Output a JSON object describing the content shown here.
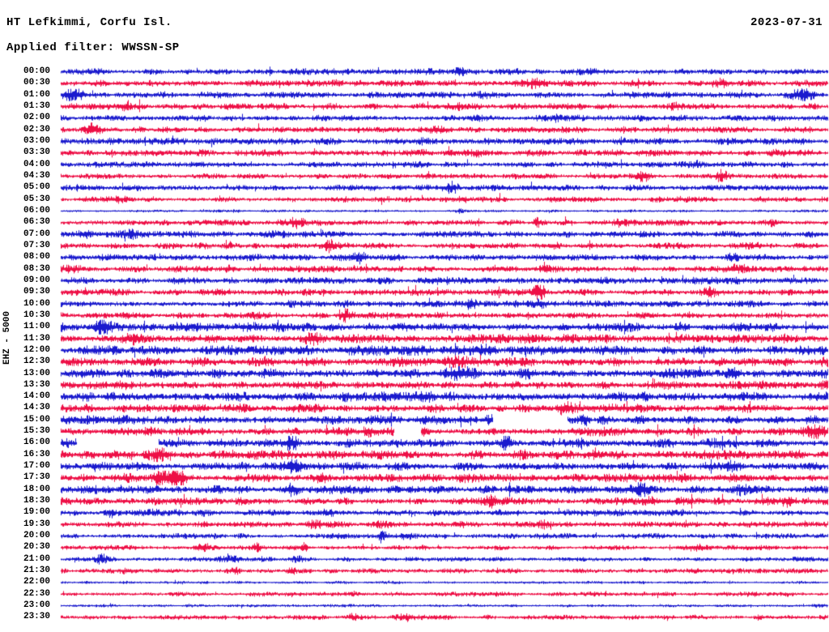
{
  "header": {
    "title": "HT Lefkimmi, Corfu Isl.",
    "filter": "Applied filter: WWSSN-SP",
    "date": "2023-07-31"
  },
  "axis": {
    "left_label": "EHZ - 5000"
  },
  "colors": {
    "background": "#ffffff",
    "text": "#000000",
    "trace_blue": "#1a1ace",
    "trace_red": "#ee0f46"
  },
  "chart_data": {
    "type": "line",
    "subtype": "seismic-helicorder-day-plot",
    "title": "HT Lefkimmi, Corfu Isl.",
    "date": "2023-07-31",
    "filter": "WWSSN-SP",
    "left_axis_label": "EHZ - 5000",
    "minutes_per_row": 30,
    "rows_count": 48,
    "time_range": [
      "00:00",
      "23:30"
    ],
    "color_rule": "rows starting on the hour are blue, half-hour rows are red",
    "row_field_legend": {
      "t": "row start time (UTC label shown at left)",
      "c": "trace color key",
      "a": "relative background noise amplitude of the row",
      "b": "noise bursts/events: [position 0-1 across row, amplitude multiplier, width fraction]",
      "g": "data gaps (blank trace): [start fraction, end fraction]"
    },
    "rows": [
      {
        "t": "00:00",
        "c": "blue",
        "a": 0.95,
        "b": [
          [
            0.52,
            2.6,
            0.006
          ]
        ],
        "g": []
      },
      {
        "t": "00:30",
        "c": "red",
        "a": 1.0,
        "b": [
          [
            0.36,
            1.9,
            0.006
          ],
          [
            0.62,
            1.8,
            0.006
          ],
          [
            0.86,
            1.6,
            0.008
          ]
        ],
        "g": []
      },
      {
        "t": "01:00",
        "c": "blue",
        "a": 1.0,
        "b": [
          [
            0.015,
            2.2,
            0.012
          ],
          [
            0.55,
            1.5,
            0.008
          ],
          [
            0.965,
            2.2,
            0.01
          ]
        ],
        "g": []
      },
      {
        "t": "01:30",
        "c": "red",
        "a": 1.0,
        "b": [
          [
            0.085,
            1.9,
            0.006
          ],
          [
            0.52,
            1.6,
            0.006
          ],
          [
            0.8,
            1.8,
            0.006
          ]
        ],
        "g": []
      },
      {
        "t": "02:00",
        "c": "blue",
        "a": 0.95,
        "b": [
          [
            0.645,
            1.9,
            0.006
          ]
        ],
        "g": []
      },
      {
        "t": "02:30",
        "c": "red",
        "a": 0.95,
        "b": [
          [
            0.042,
            2.6,
            0.007
          ],
          [
            0.5,
            1.4,
            0.01
          ]
        ],
        "g": []
      },
      {
        "t": "03:00",
        "c": "blue",
        "a": 1.0,
        "b": [
          [
            0.47,
            1.4,
            0.012
          ]
        ],
        "g": []
      },
      {
        "t": "03:30",
        "c": "red",
        "a": 1.05,
        "b": [
          [
            0.55,
            1.5,
            0.006
          ],
          [
            0.93,
            1.6,
            0.005
          ]
        ],
        "g": []
      },
      {
        "t": "04:00",
        "c": "blue",
        "a": 0.9,
        "b": [
          [
            0.18,
            2.1,
            0.007
          ],
          [
            0.473,
            1.8,
            0.005
          ],
          [
            0.83,
            1.5,
            0.006
          ]
        ],
        "g": []
      },
      {
        "t": "04:30",
        "c": "red",
        "a": 0.85,
        "b": [
          [
            0.76,
            2.2,
            0.006
          ],
          [
            0.862,
            2.4,
            0.005
          ]
        ],
        "g": []
      },
      {
        "t": "05:00",
        "c": "blue",
        "a": 0.9,
        "b": [
          [
            0.512,
            2.4,
            0.007
          ]
        ],
        "g": []
      },
      {
        "t": "05:30",
        "c": "red",
        "a": 0.85,
        "b": [
          [
            0.072,
            1.6,
            0.008
          ],
          [
            0.42,
            1.4,
            0.008
          ]
        ],
        "g": []
      },
      {
        "t": "06:00",
        "c": "blue",
        "a": 0.4,
        "b": [
          [
            0.23,
            1.6,
            0.004
          ],
          [
            0.52,
            2.0,
            0.004
          ]
        ],
        "g": []
      },
      {
        "t": "06:30",
        "c": "red",
        "a": 0.9,
        "b": [
          [
            0.308,
            2.8,
            0.006
          ],
          [
            0.62,
            1.9,
            0.005
          ],
          [
            0.73,
            1.8,
            0.005
          ],
          [
            0.925,
            1.9,
            0.005
          ]
        ],
        "g": []
      },
      {
        "t": "07:00",
        "c": "blue",
        "a": 1.0,
        "b": [
          [
            0.03,
            1.7,
            0.008
          ],
          [
            0.09,
            1.7,
            0.006
          ],
          [
            0.29,
            1.7,
            0.01
          ],
          [
            0.51,
            1.8,
            0.004
          ]
        ],
        "g": []
      },
      {
        "t": "07:30",
        "c": "red",
        "a": 0.95,
        "b": [
          [
            0.35,
            2.2,
            0.006
          ],
          [
            0.645,
            2.5,
            0.006
          ]
        ],
        "g": []
      },
      {
        "t": "08:00",
        "c": "blue",
        "a": 1.0,
        "b": [
          [
            0.24,
            1.6,
            0.006
          ],
          [
            0.392,
            2.2,
            0.006
          ],
          [
            0.87,
            1.5,
            0.008
          ]
        ],
        "g": []
      },
      {
        "t": "08:30",
        "c": "red",
        "a": 1.0,
        "b": [
          [
            0.02,
            1.8,
            0.01
          ],
          [
            0.22,
            1.7,
            0.006
          ],
          [
            0.63,
            1.7,
            0.006
          ],
          [
            0.88,
            1.5,
            0.01
          ]
        ],
        "g": []
      },
      {
        "t": "09:00",
        "c": "blue",
        "a": 1.05,
        "b": [
          [
            0.49,
            1.5,
            0.008
          ],
          [
            0.85,
            1.5,
            0.01
          ]
        ],
        "g": []
      },
      {
        "t": "09:30",
        "c": "red",
        "a": 1.0,
        "b": [
          [
            0.21,
            1.5,
            0.008
          ],
          [
            0.623,
            3.0,
            0.005
          ],
          [
            0.845,
            1.9,
            0.006
          ]
        ],
        "g": []
      },
      {
        "t": "10:00",
        "c": "blue",
        "a": 1.0,
        "b": [
          [
            0.3,
            1.6,
            0.006
          ],
          [
            0.37,
            1.8,
            0.008
          ],
          [
            0.535,
            2.8,
            0.005
          ],
          [
            0.625,
            2.0,
            0.006
          ]
        ],
        "g": []
      },
      {
        "t": "10:30",
        "c": "red",
        "a": 0.95,
        "b": [
          [
            0.25,
            2.0,
            0.007
          ],
          [
            0.37,
            2.2,
            0.007
          ]
        ],
        "g": []
      },
      {
        "t": "11:00",
        "c": "blue",
        "a": 1.35,
        "b": [
          [
            0.053,
            2.0,
            0.008
          ]
        ],
        "g": []
      },
      {
        "t": "11:30",
        "c": "red",
        "a": 1.35,
        "b": [
          [
            0.09,
            1.7,
            0.007
          ],
          [
            0.33,
            1.6,
            0.006
          ]
        ],
        "g": []
      },
      {
        "t": "12:00",
        "c": "blue",
        "a": 1.45,
        "b": [
          [
            0.55,
            1.3,
            0.01
          ]
        ],
        "g": []
      },
      {
        "t": "12:30",
        "c": "red",
        "a": 1.4,
        "b": [
          [
            0.52,
            1.4,
            0.01
          ],
          [
            0.91,
            1.4,
            0.006
          ]
        ],
        "g": []
      },
      {
        "t": "13:00",
        "c": "blue",
        "a": 1.4,
        "b": [
          [
            0.52,
            1.6,
            0.014
          ],
          [
            0.605,
            1.6,
            0.01
          ],
          [
            0.875,
            1.6,
            0.008
          ]
        ],
        "g": []
      },
      {
        "t": "13:30",
        "c": "red",
        "a": 1.3,
        "b": [
          [
            0.235,
            1.5,
            0.006
          ],
          [
            0.47,
            1.5,
            0.006
          ]
        ],
        "g": []
      },
      {
        "t": "14:00",
        "c": "blue",
        "a": 1.4,
        "b": [
          [
            0.475,
            1.8,
            0.008
          ]
        ],
        "g": []
      },
      {
        "t": "14:30",
        "c": "red",
        "a": 1.3,
        "b": [
          [
            0.655,
            1.7,
            0.008
          ]
        ],
        "g": []
      },
      {
        "t": "15:00",
        "c": "blue",
        "a": 1.3,
        "b": [
          [
            0.56,
            2.0,
            0.004
          ],
          [
            0.685,
            2.2,
            0.004
          ]
        ],
        "g": [
          [
            0.563,
            0.66
          ]
        ]
      },
      {
        "t": "15:30",
        "c": "red",
        "a": 1.3,
        "b": [
          [
            0.4,
            1.7,
            0.006
          ],
          [
            0.47,
            1.8,
            0.006
          ],
          [
            0.985,
            2.0,
            0.008
          ]
        ],
        "g": [
          [
            0.435,
            0.469
          ]
        ]
      },
      {
        "t": "16:00",
        "c": "blue",
        "a": 1.25,
        "b": [
          [
            0.005,
            1.9,
            0.008
          ],
          [
            0.3,
            2.1,
            0.006
          ],
          [
            0.58,
            2.5,
            0.005
          ],
          [
            0.86,
            1.7,
            0.006
          ]
        ],
        "g": [
          [
            0.021,
            0.127
          ]
        ]
      },
      {
        "t": "16:30",
        "c": "red",
        "a": 1.35,
        "b": [
          [
            0.135,
            2.0,
            0.01
          ],
          [
            0.6,
            1.8,
            0.008
          ],
          [
            0.95,
            1.6,
            0.008
          ]
        ],
        "g": []
      },
      {
        "t": "17:00",
        "c": "blue",
        "a": 1.3,
        "b": [
          [
            0.3,
            2.3,
            0.008
          ],
          [
            0.87,
            1.8,
            0.01
          ]
        ],
        "g": []
      },
      {
        "t": "17:30",
        "c": "red",
        "a": 1.3,
        "b": [
          [
            0.127,
            3.2,
            0.006
          ],
          [
            0.152,
            3.4,
            0.008
          ],
          [
            0.34,
            1.6,
            0.006
          ]
        ],
        "g": []
      },
      {
        "t": "18:00",
        "c": "blue",
        "a": 1.25,
        "b": [
          [
            0.3,
            1.9,
            0.006
          ],
          [
            0.435,
            2.1,
            0.006
          ],
          [
            0.75,
            2.8,
            0.009
          ],
          [
            0.885,
            2.5,
            0.007
          ]
        ],
        "g": []
      },
      {
        "t": "18:30",
        "c": "red",
        "a": 1.15,
        "b": [
          [
            0.47,
            1.6,
            0.006
          ],
          [
            0.56,
            1.6,
            0.006
          ],
          [
            0.77,
            1.5,
            0.008
          ],
          [
            0.95,
            1.7,
            0.006
          ]
        ],
        "g": []
      },
      {
        "t": "19:00",
        "c": "blue",
        "a": 1.0,
        "b": [
          [
            0.065,
            1.8,
            0.005
          ],
          [
            0.135,
            1.8,
            0.008
          ],
          [
            0.35,
            2.4,
            0.007
          ]
        ],
        "g": []
      },
      {
        "t": "19:30",
        "c": "red",
        "a": 0.9,
        "b": [
          [
            0.33,
            2.1,
            0.008
          ],
          [
            0.42,
            1.7,
            0.006
          ],
          [
            0.52,
            1.7,
            0.005
          ],
          [
            0.63,
            1.8,
            0.005
          ]
        ],
        "g": []
      },
      {
        "t": "20:00",
        "c": "blue",
        "a": 0.8,
        "b": [
          [
            0.36,
            1.9,
            0.008
          ],
          [
            0.42,
            2.4,
            0.005
          ],
          [
            0.45,
            1.9,
            0.004
          ],
          [
            0.63,
            1.5,
            0.006
          ]
        ],
        "g": []
      },
      {
        "t": "20:30",
        "c": "red",
        "a": 0.75,
        "b": [
          [
            0.185,
            2.2,
            0.01
          ],
          [
            0.255,
            2.3,
            0.004
          ],
          [
            0.317,
            2.5,
            0.004
          ],
          [
            0.83,
            1.6,
            0.01
          ]
        ],
        "g": []
      },
      {
        "t": "21:00",
        "c": "blue",
        "a": 0.7,
        "b": [
          [
            0.053,
            2.6,
            0.004
          ],
          [
            0.22,
            1.8,
            0.01
          ],
          [
            0.31,
            1.6,
            0.006
          ]
        ],
        "g": []
      },
      {
        "t": "21:30",
        "c": "red",
        "a": 0.75,
        "b": [
          [
            0.09,
            1.7,
            0.008
          ],
          [
            0.23,
            1.9,
            0.005
          ],
          [
            0.3,
            1.8,
            0.005
          ]
        ],
        "g": []
      },
      {
        "t": "22:00",
        "c": "blue",
        "a": 0.45,
        "b": [],
        "g": []
      },
      {
        "t": "22:30",
        "c": "red",
        "a": 0.7,
        "b": [
          [
            0.3,
            1.5,
            0.008
          ],
          [
            0.45,
            1.4,
            0.006
          ],
          [
            0.9,
            1.5,
            0.006
          ]
        ],
        "g": []
      },
      {
        "t": "23:00",
        "c": "blue",
        "a": 0.45,
        "b": [
          [
            0.83,
            1.5,
            0.01
          ],
          [
            0.985,
            2.8,
            0.005
          ]
        ],
        "g": []
      },
      {
        "t": "23:30",
        "c": "red",
        "a": 0.7,
        "b": [
          [
            0.21,
            1.8,
            0.004
          ],
          [
            0.38,
            2.2,
            0.005
          ],
          [
            0.445,
            2.3,
            0.008
          ]
        ],
        "g": []
      }
    ]
  }
}
